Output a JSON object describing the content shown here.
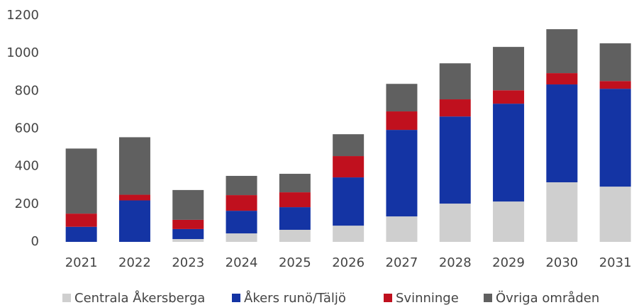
{
  "chart_data": {
    "type": "stacked_bar",
    "categories": [
      "2021",
      "2022",
      "2023",
      "2024",
      "2025",
      "2026",
      "2027",
      "2028",
      "2029",
      "2030",
      "2031"
    ],
    "series": [
      {
        "name": "Centrala Åkersberga",
        "color": "#cfcfcf",
        "values": [
          0,
          0,
          15,
          45,
          64,
          86,
          135,
          203,
          214,
          316,
          293
        ]
      },
      {
        "name": "Åkers runö/Täljö",
        "color": "#1434a4",
        "values": [
          80,
          220,
          53,
          120,
          120,
          256,
          459,
          462,
          519,
          519,
          519
        ]
      },
      {
        "name": "Svinninge",
        "color": "#c0101e",
        "values": [
          70,
          30,
          49,
          83,
          79,
          113,
          98,
          91,
          71,
          60,
          41
        ]
      },
      {
        "name": "Övriga områden",
        "color": "#606060",
        "values": [
          345,
          305,
          158,
          102,
          98,
          116,
          146,
          191,
          230,
          233,
          200
        ]
      }
    ],
    "ylim": [
      0,
      1200
    ],
    "yticks": [
      0,
      200,
      400,
      600,
      800,
      1000,
      1200
    ],
    "grid": false,
    "legend": "bottom"
  }
}
